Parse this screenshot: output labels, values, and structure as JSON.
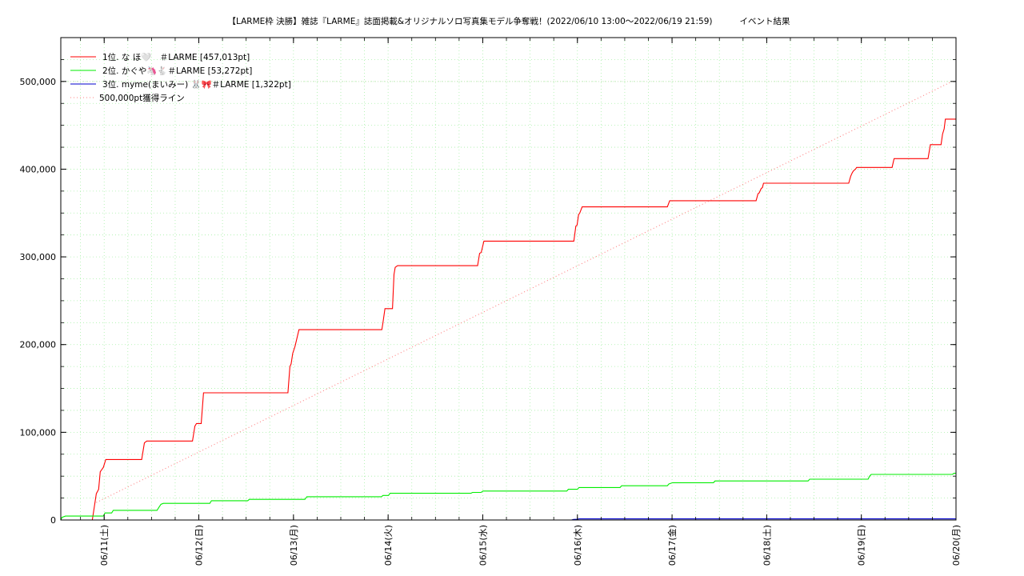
{
  "chart_data": {
    "type": "line",
    "title": "【LARME枠 決勝】雑誌『LARME』誌面掲載&オリジナルソロ写真集モデル争奪戦！(2022/06/10 13:00～2022/06/19 21:59)",
    "subtitle": "イベント結果",
    "x_axis": {
      "range": [
        "2022/06/10 13:00",
        "2022/06/20 00:00"
      ],
      "ticks": [
        {
          "t": 11,
          "label": "06/11(土)"
        },
        {
          "t": 35,
          "label": "06/12(日)"
        },
        {
          "t": 59,
          "label": "06/13(月)"
        },
        {
          "t": 83,
          "label": "06/14(火)"
        },
        {
          "t": 107,
          "label": "06/15(水)"
        },
        {
          "t": 131,
          "label": "06/16(木)"
        },
        {
          "t": 155,
          "label": "06/17(金)"
        },
        {
          "t": 179,
          "label": "06/18(土)"
        },
        {
          "t": 203,
          "label": "06/19(日)"
        },
        {
          "t": 227,
          "label": "06/20(月)"
        }
      ]
    },
    "y_axis": {
      "range": [
        0,
        550000
      ],
      "ticks": [
        {
          "v": 0,
          "label": "0"
        },
        {
          "v": 100000,
          "label": "100,000"
        },
        {
          "v": 200000,
          "label": "200,000"
        },
        {
          "v": 300000,
          "label": "300,000"
        },
        {
          "v": 400000,
          "label": "400,000"
        },
        {
          "v": 500000,
          "label": "500,000"
        }
      ]
    },
    "grid": true,
    "legend_position": "top-left",
    "series": [
      {
        "name": "1位. な ほ🤍　＃LARME [457,013pt]",
        "color": "#ff0000",
        "dash": "",
        "points": [
          [
            0,
            0
          ],
          [
            8,
            0
          ],
          [
            9,
            30000
          ],
          [
            9.6,
            35000
          ],
          [
            10,
            55000
          ],
          [
            10.8,
            60000
          ],
          [
            11.4,
            69000
          ],
          [
            20.5,
            69000
          ],
          [
            21.2,
            88000
          ],
          [
            21.8,
            90000
          ],
          [
            33.4,
            90000
          ],
          [
            34,
            107000
          ],
          [
            34.4,
            110000
          ],
          [
            35.6,
            110000
          ],
          [
            36.2,
            145000
          ],
          [
            57.6,
            145000
          ],
          [
            58.1,
            175000
          ],
          [
            58.4,
            178000
          ],
          [
            58.8,
            190000
          ],
          [
            59.4,
            198000
          ],
          [
            60.4,
            217000
          ],
          [
            81.4,
            217000
          ],
          [
            81.7,
            225000
          ],
          [
            82.2,
            241000
          ],
          [
            84.1,
            241000
          ],
          [
            84.5,
            280000
          ],
          [
            84.8,
            288000
          ],
          [
            85.4,
            290000
          ],
          [
            105.7,
            290000
          ],
          [
            106.2,
            304000
          ],
          [
            106.6,
            305000
          ],
          [
            107.3,
            318000
          ],
          [
            130.1,
            318000
          ],
          [
            130.6,
            335000
          ],
          [
            130.9,
            336000
          ],
          [
            131.3,
            348000
          ],
          [
            131.6,
            350000
          ],
          [
            132.2,
            357000
          ],
          [
            153.8,
            357000
          ],
          [
            154.4,
            364000
          ],
          [
            176.3,
            364000
          ],
          [
            176.8,
            372000
          ],
          [
            177.1,
            373000
          ],
          [
            177.6,
            378000
          ],
          [
            177.9,
            379000
          ],
          [
            178.2,
            384000
          ],
          [
            199.8,
            384000
          ],
          [
            200.3,
            392000
          ],
          [
            200.7,
            396000
          ],
          [
            201,
            398000
          ],
          [
            201.5,
            400000
          ],
          [
            201.8,
            402000
          ],
          [
            210.8,
            402000
          ],
          [
            211.3,
            412000
          ],
          [
            219.9,
            412000
          ],
          [
            220.5,
            428000
          ],
          [
            223.2,
            428000
          ],
          [
            223.6,
            440000
          ],
          [
            224,
            446000
          ],
          [
            224.3,
            457013
          ],
          [
            227,
            457013
          ]
        ]
      },
      {
        "name": "2位. かぐや🦄🐇＃LARME [53,272pt]",
        "color": "#00ee00",
        "dash": "",
        "points": [
          [
            0,
            0
          ],
          [
            0.3,
            3000
          ],
          [
            1.2,
            4500
          ],
          [
            10.8,
            4500
          ],
          [
            11.2,
            8000
          ],
          [
            12.9,
            8000
          ],
          [
            13.3,
            11000
          ],
          [
            24.4,
            11000
          ],
          [
            24.8,
            14000
          ],
          [
            25.4,
            18000
          ],
          [
            26,
            19000
          ],
          [
            37.8,
            19000
          ],
          [
            38.2,
            22000
          ],
          [
            47.4,
            22000
          ],
          [
            47.8,
            23500
          ],
          [
            61.9,
            23500
          ],
          [
            62.4,
            26500
          ],
          [
            81.3,
            26500
          ],
          [
            81.7,
            28000
          ],
          [
            83.1,
            28000
          ],
          [
            83.5,
            30500
          ],
          [
            104,
            30500
          ],
          [
            104.4,
            31500
          ],
          [
            106.6,
            31500
          ],
          [
            107,
            33000
          ],
          [
            128.3,
            33000
          ],
          [
            128.7,
            35000
          ],
          [
            131,
            35000
          ],
          [
            131.4,
            37000
          ],
          [
            141.8,
            37000
          ],
          [
            142.2,
            39000
          ],
          [
            153.8,
            39000
          ],
          [
            154.2,
            41000
          ],
          [
            155.1,
            42500
          ],
          [
            165.5,
            42500
          ],
          [
            165.9,
            44500
          ],
          [
            189.5,
            44500
          ],
          [
            189.9,
            46500
          ],
          [
            204.7,
            46500
          ],
          [
            205.1,
            50000
          ],
          [
            205.5,
            52000
          ],
          [
            226.1,
            52000
          ],
          [
            226.5,
            53272
          ],
          [
            227,
            53272
          ]
        ]
      },
      {
        "name": "3位. myme(まいみー) 🐰🎀＃LARME [1,322pt]",
        "color": "#0000cc",
        "dash": "",
        "points": [
          [
            47,
            0
          ],
          [
            129.5,
            0
          ],
          [
            130,
            600
          ],
          [
            131,
            900
          ],
          [
            131.5,
            1322
          ],
          [
            227,
            1322
          ]
        ]
      },
      {
        "name": "500,000pt獲得ライン",
        "color": "#ff8080",
        "dash": "1,3",
        "points": [
          [
            9,
            20000
          ],
          [
            226,
            500000
          ]
        ]
      }
    ],
    "target_line": {
      "value": 500000,
      "color": "#cfe6c0"
    }
  }
}
